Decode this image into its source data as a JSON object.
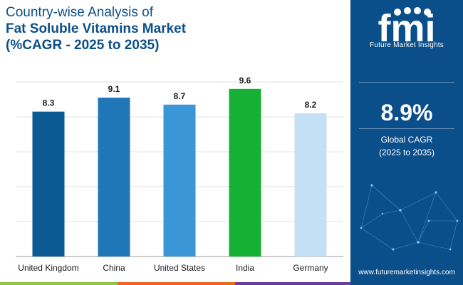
{
  "title": {
    "line1": "Country-wise Analysis of",
    "line2": "Fat Soluble Vitamins Market",
    "line3": "(%CAGR - 2025 to 2035)"
  },
  "brand": {
    "logo_text": "fmi",
    "name": "Future Market Insights",
    "website": "www.futuremarketinsights.com"
  },
  "global_cagr": {
    "value": "8.9%",
    "label": "Global CAGR",
    "period": "(2025 to 2035)"
  },
  "colors": {
    "title": "#0b4f8a",
    "panel": "#0b4f8a"
  },
  "chart_data": {
    "type": "bar",
    "categories": [
      "United Kingdom",
      "China",
      "United States",
      "India",
      "Germany"
    ],
    "values": [
      8.3,
      9.1,
      8.7,
      9.6,
      8.2
    ],
    "value_labels": [
      "8.3",
      "9.1",
      "8.7",
      "9.6",
      "8.2"
    ],
    "bar_colors": [
      "#0b5a94",
      "#1f77b8",
      "#3a96d6",
      "#16b035",
      "#c3e0f4"
    ],
    "title": "",
    "xlabel": "",
    "ylabel": "",
    "ylim": [
      0,
      10
    ],
    "grid": true
  }
}
